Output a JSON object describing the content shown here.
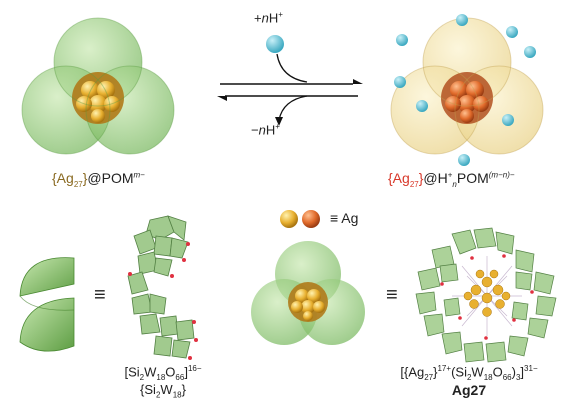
{
  "reaction": {
    "top_reagent_prefix": "+",
    "top_reagent_n": "n",
    "top_reagent_h": "H",
    "top_reagent_charge": "+",
    "bottom_reagent_prefix": "−",
    "bottom_reagent_n": "n",
    "bottom_reagent_h": "H",
    "bottom_reagent_charge": "+"
  },
  "left_label": {
    "core": "{Ag",
    "core_sub": "27",
    "core_close": "}",
    "at": "@POM",
    "charge": "m−"
  },
  "right_label": {
    "core": "{Ag",
    "core_sub": "27",
    "core_close": "}",
    "at": "@H",
    "h_sup": "+",
    "h_sub": "n",
    "pom": "POM",
    "charge": "(m−n)−"
  },
  "legend": {
    "equiv": "≡ Ag"
  },
  "equiv_symbols": [
    "≡",
    "≡"
  ],
  "formula_left": {
    "line1_a": "[Si",
    "line1_s1": "2",
    "line1_b": "W",
    "line1_s2": "18",
    "line1_c": "O",
    "line1_s3": "66",
    "line1_d": "]",
    "line1_charge": "16−",
    "line2_a": "{Si",
    "line2_s1": "2",
    "line2_b": "W",
    "line2_s2": "18",
    "line2_c": "}"
  },
  "formula_right": {
    "line1_a": "[{Ag",
    "line1_s1": "27",
    "line1_b": "}",
    "line1_sup1": "17+",
    "line1_c": "(Si",
    "line1_s2": "2",
    "line1_d": "W",
    "line1_s3": "18",
    "line1_e": "O",
    "line1_s4": "66",
    "line1_f": ")",
    "line1_s5": "3",
    "line1_g": "]",
    "line1_charge": "31−",
    "line2": "Ag27"
  },
  "colors": {
    "green": "#8cc870",
    "silver_gold": "#e8b030",
    "silver_orange": "#e06a2a",
    "proton": "#5bc8d8",
    "yellow_shell": "#f0dc90",
    "red_text": "#d8382a",
    "brown_text": "#8a6a22"
  }
}
